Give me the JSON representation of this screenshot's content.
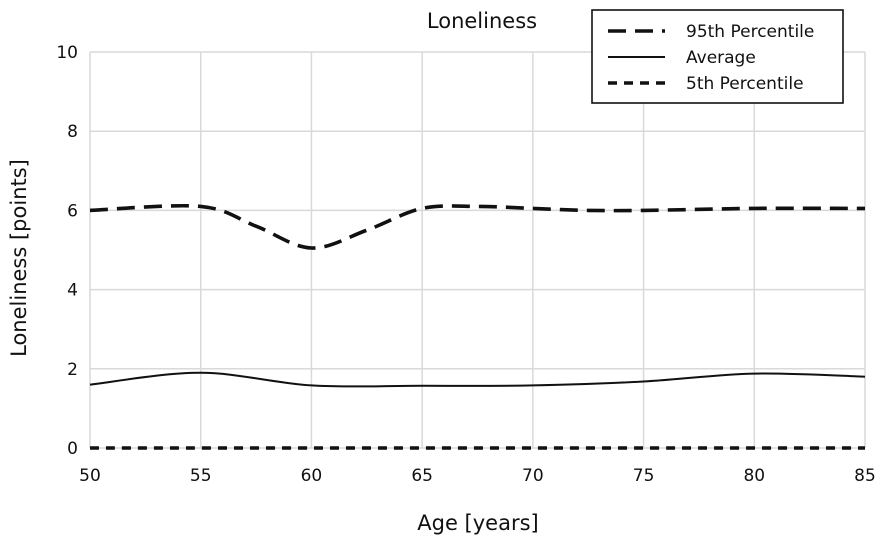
{
  "chart_data": {
    "type": "line",
    "title": "Loneliness",
    "xlabel": "Age [years]",
    "ylabel": "Loneliness [points]",
    "xlim": [
      50,
      85
    ],
    "ylim": [
      0,
      10
    ],
    "x_ticks": [
      50,
      55,
      60,
      65,
      70,
      75,
      80,
      85
    ],
    "y_ticks": [
      0,
      2,
      4,
      6,
      8,
      10
    ],
    "grid": true,
    "legend_position": "top-right",
    "series": [
      {
        "name": "95th Percentile",
        "style": "long-dash",
        "points": [
          [
            50,
            6.0
          ],
          [
            55,
            6.1
          ],
          [
            57.5,
            5.6
          ],
          [
            60,
            5.05
          ],
          [
            62.5,
            5.5
          ],
          [
            65,
            6.05
          ],
          [
            67.5,
            6.1
          ],
          [
            70,
            6.05
          ],
          [
            72.5,
            6.0
          ],
          [
            75,
            6.0
          ],
          [
            80,
            6.05
          ],
          [
            85,
            6.05
          ]
        ]
      },
      {
        "name": "Average",
        "style": "solid",
        "points": [
          [
            50,
            1.6
          ],
          [
            55,
            1.9
          ],
          [
            60,
            1.58
          ],
          [
            65,
            1.57
          ],
          [
            70,
            1.58
          ],
          [
            75,
            1.68
          ],
          [
            80,
            1.88
          ],
          [
            85,
            1.8
          ]
        ]
      },
      {
        "name": "5th Percentile",
        "style": "short-dash",
        "points": [
          [
            50,
            0.0
          ],
          [
            60,
            0.0
          ],
          [
            70,
            0.0
          ],
          [
            80,
            0.0
          ],
          [
            85,
            0.0
          ]
        ]
      }
    ],
    "colors": {
      "line": "#111111",
      "grid": "#d9d9d9"
    }
  }
}
